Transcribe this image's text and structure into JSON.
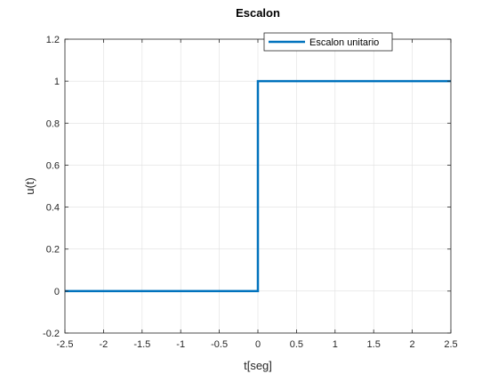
{
  "chart_data": {
    "type": "line",
    "title": "Escalon",
    "xlabel": "t[seg]",
    "ylabel": "u(t)",
    "xlim": [
      -2.5,
      2.5
    ],
    "ylim": [
      -0.2,
      1.2
    ],
    "xticks": [
      -2.5,
      -2,
      -1.5,
      -1,
      -0.5,
      0,
      0.5,
      1,
      1.5,
      2,
      2.5
    ],
    "xtick_labels": [
      "-2.5",
      "-2",
      "-1.5",
      "-1",
      "-0.5",
      "0",
      "0.5",
      "1",
      "1.5",
      "2",
      "2.5"
    ],
    "yticks": [
      -0.2,
      0,
      0.2,
      0.4,
      0.6,
      0.8,
      1,
      1.2
    ],
    "ytick_labels": [
      "-0.2",
      "0",
      "0.2",
      "0.4",
      "0.6",
      "0.8",
      "1",
      "1.2"
    ],
    "grid": true,
    "legend_position": "top-right",
    "series": [
      {
        "name": "Escalon unitario",
        "color": "#0072BD",
        "x": [
          -2.5,
          0,
          0,
          2.5
        ],
        "y": [
          0,
          0,
          1,
          1
        ]
      }
    ]
  }
}
